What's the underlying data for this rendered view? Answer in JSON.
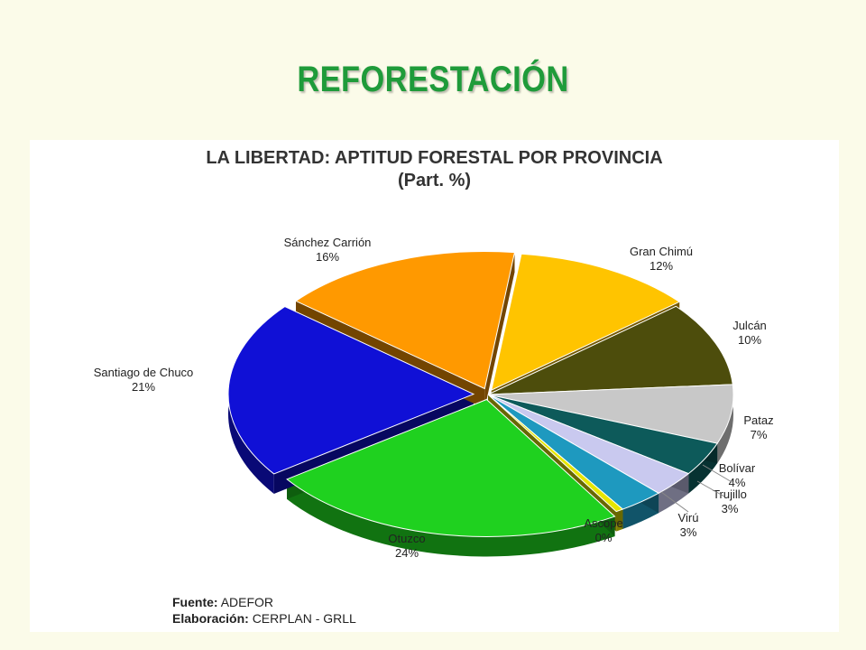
{
  "slide": {
    "title": "REFORESTACIÓN"
  },
  "chart_data": {
    "type": "pie",
    "title": "LA LIBERTAD: APTITUD FORESTAL POR PROVINCIA",
    "subtitle": "(Part. %)",
    "slices": [
      {
        "name": "Gran Chimú",
        "value": 12,
        "label": "12%",
        "color": "#ffc400"
      },
      {
        "name": "Julcán",
        "value": 10,
        "label": "10%",
        "color": "#4d4d0c"
      },
      {
        "name": "Pataz",
        "value": 7,
        "label": "7%",
        "color": "#c8c8c8"
      },
      {
        "name": "Bolívar",
        "value": 4,
        "label": "4%",
        "color": "#0d5a5a"
      },
      {
        "name": "Trujillo",
        "value": 3,
        "label": "3%",
        "color": "#c9c9ef"
      },
      {
        "name": "Virú",
        "value": 3,
        "label": "3%",
        "color": "#1e99bf"
      },
      {
        "name": "Ascope",
        "value": 0.5,
        "label": "0%",
        "color": "#e6e600"
      },
      {
        "name": "Otuzco",
        "value": 24,
        "label": "24%",
        "color": "#1fd11f"
      },
      {
        "name": "Santiago de Chuco",
        "value": 21,
        "label": "21%",
        "color": "#1010d6"
      },
      {
        "name": "Sánchez Carrión",
        "value": 16,
        "label": "16%",
        "color": "#ff9900"
      }
    ]
  },
  "source": {
    "fuente_label": "Fuente:",
    "fuente_value": "ADEFOR",
    "elab_label": "Elaboración:",
    "elab_value": "CERPLAN - GRLL"
  }
}
